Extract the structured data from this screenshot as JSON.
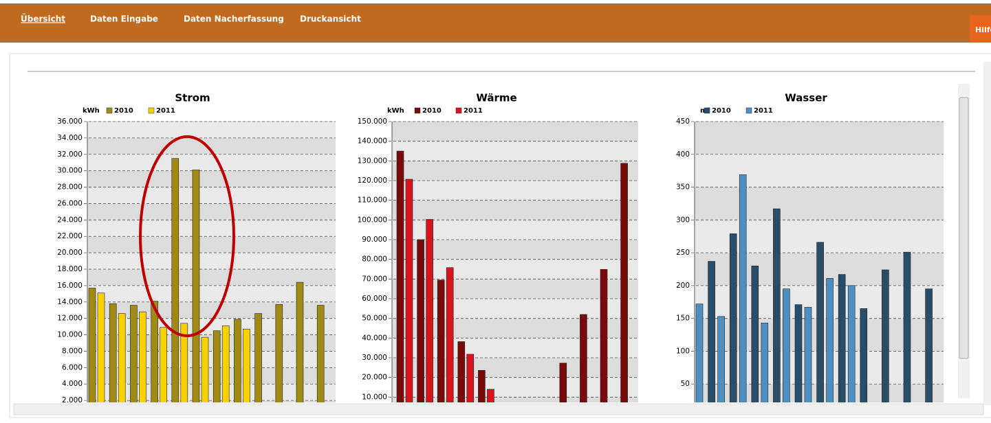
{
  "nav": {
    "items": [
      "Übersicht",
      "Daten Eingabe",
      "Daten Nacherfassung",
      "Druckansicht"
    ],
    "help": "Hilfe"
  },
  "chart_data": [
    {
      "type": "bar",
      "title": "Strom",
      "unit": "kWh",
      "ylim": [
        0,
        36000
      ],
      "yticks": [
        {
          "value": 2000,
          "label": "2.000"
        },
        {
          "value": 4000,
          "label": "4.000"
        },
        {
          "value": 6000,
          "label": "6.000"
        },
        {
          "value": 8000,
          "label": "8.000"
        },
        {
          "value": 10000,
          "label": "10.000"
        },
        {
          "value": 12000,
          "label": "12.000"
        },
        {
          "value": 14000,
          "label": "14.000"
        },
        {
          "value": 16000,
          "label": "16.000"
        },
        {
          "value": 18000,
          "label": "18.000"
        },
        {
          "value": 20000,
          "label": "20.000"
        },
        {
          "value": 22000,
          "label": "22.000"
        },
        {
          "value": 24000,
          "label": "24.000"
        },
        {
          "value": 26000,
          "label": "26.000"
        },
        {
          "value": 28000,
          "label": "28.000"
        },
        {
          "value": 30000,
          "label": "30.000"
        },
        {
          "value": 32000,
          "label": "32.000"
        },
        {
          "value": 34000,
          "label": "34.000"
        },
        {
          "value": 36000,
          "label": "36.000"
        }
      ],
      "series": [
        {
          "name": "2010",
          "color": "#a08a14",
          "values": [
            15700,
            13800,
            13600,
            14100,
            31500,
            30100,
            10500,
            11900,
            12600,
            13700,
            16400,
            13600
          ]
        },
        {
          "name": "2011",
          "color": "#f7d200",
          "values": [
            15100,
            12600,
            12800,
            10900,
            11400,
            9700,
            11100,
            10700,
            null,
            null,
            null,
            null
          ]
        }
      ]
    },
    {
      "type": "bar",
      "title": "Wärme",
      "unit": "kWh",
      "ylim": [
        0,
        150000
      ],
      "yticks": [
        {
          "value": 10000,
          "label": "10.000"
        },
        {
          "value": 20000,
          "label": "20.000"
        },
        {
          "value": 30000,
          "label": "30.000"
        },
        {
          "value": 40000,
          "label": "40.000"
        },
        {
          "value": 50000,
          "label": "50.000"
        },
        {
          "value": 60000,
          "label": "60.000"
        },
        {
          "value": 70000,
          "label": "70.000"
        },
        {
          "value": 80000,
          "label": "80.000"
        },
        {
          "value": 90000,
          "label": "90.000"
        },
        {
          "value": 100000,
          "label": "100.000"
        },
        {
          "value": 110000,
          "label": "110.000"
        },
        {
          "value": 120000,
          "label": "120.000"
        },
        {
          "value": 130000,
          "label": "130.000"
        },
        {
          "value": 140000,
          "label": "140.000"
        },
        {
          "value": 150000,
          "label": "150.000"
        }
      ],
      "series": [
        {
          "name": "2010",
          "color": "#7a0a0a",
          "values": [
            135000,
            90000,
            69500,
            38200,
            23600,
            null,
            null,
            null,
            27300,
            52000,
            74900,
            128800
          ]
        },
        {
          "name": "2011",
          "color": "#d8141c",
          "values": [
            120700,
            100300,
            75800,
            31800,
            14000,
            null,
            null,
            null,
            null,
            null,
            null,
            null
          ]
        }
      ]
    },
    {
      "type": "bar",
      "title": "Wasser",
      "unit": "m³",
      "ylim": [
        0,
        450
      ],
      "yticks": [
        50,
        100,
        150,
        200,
        250,
        300,
        350,
        400,
        450
      ],
      "series": [
        {
          "name": "2010",
          "color": "#2a4d6a",
          "values": [
            null,
            237,
            279,
            230,
            317,
            171,
            266,
            217,
            165,
            224,
            251,
            195
          ]
        },
        {
          "name": "2011",
          "color": "#4f8fc0",
          "values": [
            172,
            153,
            369,
            143,
            195,
            167,
            211,
            200,
            null,
            null,
            null,
            null
          ]
        }
      ]
    }
  ]
}
